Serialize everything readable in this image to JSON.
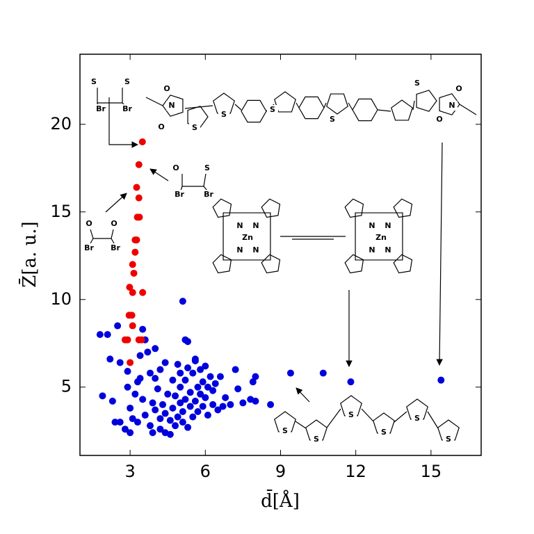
{
  "chart_data": {
    "type": "scatter",
    "xlabel": "d̄[Å]",
    "ylabel": "Z̄[a. u.]",
    "xlim": [
      1,
      17
    ],
    "ylim": [
      1.1,
      24
    ],
    "xticks": [
      3,
      6,
      9,
      12,
      15
    ],
    "yticks": [
      5,
      10,
      15,
      20
    ],
    "series": [
      {
        "color": "#0000dd",
        "x": [
          1.8,
          2.1,
          2.5,
          1.9,
          2.3,
          2.4,
          2.6,
          2.8,
          3.0,
          2.2,
          2.6,
          2.9,
          2.9,
          3.1,
          3.0,
          3.2,
          3.4,
          3.5,
          3.6,
          3.7,
          3.4,
          3.5,
          3.6,
          3.8,
          3.9,
          3.9,
          4.0,
          4.1,
          4.2,
          4.2,
          4.3,
          4.4,
          4.4,
          4.5,
          4.6,
          4.7,
          4.8,
          4.8,
          4.9,
          5.0,
          5.0,
          5.1,
          5.1,
          5.2,
          5.2,
          5.3,
          5.3,
          5.4,
          5.4,
          5.5,
          5.5,
          5.6,
          5.6,
          5.7,
          5.7,
          5.8,
          5.8,
          5.9,
          5.9,
          6.0,
          6.0,
          6.1,
          6.2,
          6.3,
          6.3,
          6.4,
          6.5,
          6.6,
          6.7,
          6.8,
          7.0,
          7.2,
          7.3,
          7.5,
          7.8,
          7.9,
          8.0,
          8.0,
          8.6,
          5.1,
          5.2,
          5.3,
          4.2,
          4.0,
          4.7,
          4.4,
          3.8,
          3.3,
          4.0,
          9.4,
          10.7,
          11.8,
          15.4,
          3.3,
          4.6,
          5.0,
          5.6,
          6.1,
          4.9
        ],
        "y": [
          8.0,
          8.0,
          8.5,
          4.5,
          4.2,
          3.0,
          3.0,
          2.6,
          2.4,
          6.6,
          6.4,
          5.0,
          5.9,
          3.2,
          3.8,
          4.6,
          6.8,
          8.3,
          7.7,
          7.0,
          5.5,
          4.3,
          3.4,
          2.8,
          2.4,
          4.1,
          3.7,
          4.9,
          2.6,
          3.2,
          4.0,
          3.5,
          2.4,
          4.6,
          3.1,
          3.8,
          4.5,
          2.8,
          3.3,
          4.1,
          5.0,
          3.0,
          3.6,
          4.3,
          5.4,
          6.1,
          2.7,
          3.9,
          4.7,
          5.8,
          3.3,
          4.2,
          6.5,
          5.0,
          3.6,
          4.6,
          6.0,
          3.9,
          5.3,
          4.4,
          6.2,
          3.4,
          5.6,
          4.0,
          4.8,
          5.2,
          3.7,
          5.6,
          3.9,
          4.4,
          4.0,
          6.0,
          4.9,
          4.1,
          4.3,
          5.3,
          5.6,
          4.2,
          4.0,
          9.9,
          7.7,
          7.6,
          6.0,
          5.5,
          5.4,
          6.4,
          5.8,
          5.3,
          7.2,
          5.8,
          5.8,
          5.3,
          5.4,
          3.0,
          2.3,
          5.8,
          6.6,
          5.0,
          6.3
        ]
      },
      {
        "color": "#ee0000",
        "x": [
          3.49,
          3.35,
          3.26,
          3.35,
          3.29,
          3.37,
          3.26,
          3.2,
          3.2,
          3.1,
          3.15,
          2.98,
          3.1,
          3.5,
          2.96,
          3.07,
          3.1,
          2.9,
          2.8,
          3.35,
          3.46,
          3.0
        ],
        "y": [
          19.0,
          17.7,
          16.4,
          15.8,
          14.7,
          14.7,
          13.4,
          13.4,
          12.7,
          12.0,
          11.5,
          10.7,
          10.4,
          10.4,
          9.1,
          9.1,
          8.5,
          7.7,
          7.7,
          7.7,
          7.7,
          6.4
        ]
      }
    ],
    "annotations": [
      {
        "labels": [
          "S",
          "S",
          "Br",
          "Br"
        ]
      },
      {
        "labels": [
          "O",
          "S",
          "Br",
          "Br"
        ]
      },
      {
        "labels": [
          "O",
          "O",
          "Br",
          "Br"
        ]
      },
      {
        "labels": [
          "N",
          "O",
          "O",
          "S",
          "S",
          "S",
          "S",
          "S",
          "N",
          "O",
          "O"
        ]
      },
      {
        "labels": [
          "N",
          "N",
          "Zn",
          "N",
          "N",
          "N",
          "N",
          "Zn",
          "N",
          "N"
        ]
      },
      {
        "labels": [
          "S",
          "S",
          "S",
          "S",
          "S",
          "S"
        ]
      }
    ]
  }
}
